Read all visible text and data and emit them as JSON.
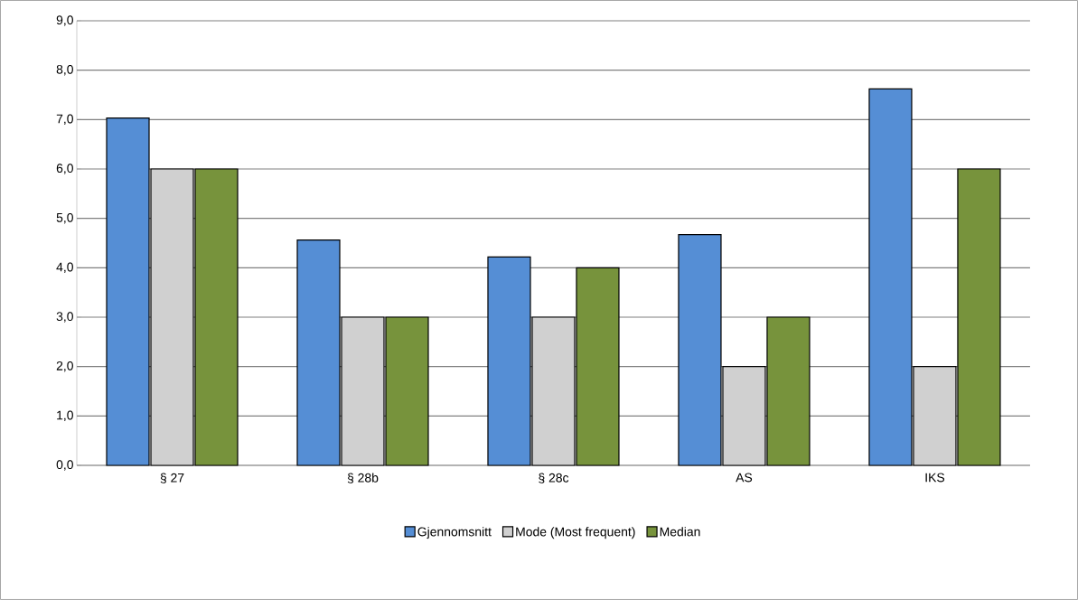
{
  "chart_data": {
    "type": "bar",
    "categories": [
      "§ 27",
      "§ 28b",
      "§ 28c",
      "AS",
      "IKS"
    ],
    "series": [
      {
        "name": "Gjennomsnitt",
        "color": "#558ed5",
        "values": [
          7.03,
          4.56,
          4.22,
          4.67,
          7.62
        ]
      },
      {
        "name": "Mode (Most frequent)",
        "color": "#d0d0d0",
        "values": [
          6,
          3,
          3,
          2,
          2
        ]
      },
      {
        "name": "Median",
        "color": "#77933c",
        "values": [
          6,
          3,
          4,
          3,
          6
        ]
      }
    ],
    "ylim": [
      0,
      9
    ],
    "yticks": [
      {
        "value": 0,
        "label": "0,0"
      },
      {
        "value": 1,
        "label": "1,0"
      },
      {
        "value": 2,
        "label": "2,0"
      },
      {
        "value": 3,
        "label": "3,0"
      },
      {
        "value": 4,
        "label": "4,0"
      },
      {
        "value": 5,
        "label": "5,0"
      },
      {
        "value": 6,
        "label": "6,0"
      },
      {
        "value": 7,
        "label": "7,0"
      },
      {
        "value": 8,
        "label": "8,0"
      },
      {
        "value": 9,
        "label": "9,0"
      }
    ],
    "grid": "y",
    "legend": "bottom"
  }
}
